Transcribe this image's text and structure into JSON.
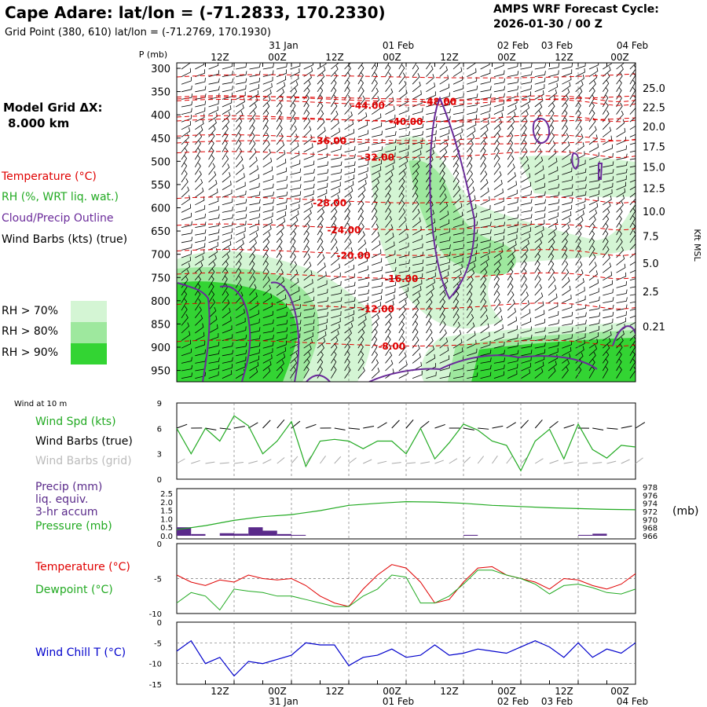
{
  "header": {
    "title": "Cape Adare:  lat/lon = (-71.2833, 170.2330)",
    "grid_point": "Grid Point (380, 610) lat/lon = (-71.2769, 170.1930)",
    "cycle_line1": "AMPS WRF Forecast Cycle:",
    "cycle_line2": "2026-01-30 / 00  Z",
    "model_grid_label": "Model Grid ΔX:",
    "model_grid_value": "8.000 km"
  },
  "colors": {
    "temperature": "#e00000",
    "rh": "#22aa22",
    "cloud": "#6a2a9a",
    "wind_chill": "#0000cc",
    "rh70": "#d4f5d4",
    "rh80": "#9ee89e",
    "rh90": "#33d433",
    "precip": "#5a2a8a"
  },
  "legend": {
    "temperature": "Temperature (°C)",
    "rh": "RH (%, WRT liq. wat.)",
    "cloud": "Cloud/Precip Outline",
    "wind": "Wind Barbs (kts) (true)",
    "rh70": "RH > 70%",
    "rh80": "RH > 80%",
    "rh90": "RH > 90%"
  },
  "time_axis": {
    "top_dates": [
      "31 Jan",
      "01 Feb",
      "02 Feb",
      "03 Feb",
      "04 Feb"
    ],
    "hour_labels": [
      "12Z",
      "00Z",
      "12Z",
      "00Z",
      "12Z",
      "00Z",
      "12Z",
      "00Z",
      "12Z",
      "00Z"
    ],
    "bottom_dates": [
      "31 Jan",
      "01 Feb",
      "02 Feb",
      "03 Feb",
      "04 Feb"
    ],
    "hours_total": 96
  },
  "chart_data": [
    {
      "type": "heatmap",
      "name": "vertical cross-section",
      "ylabel": "P (mb)",
      "y2label": "Kft MSL",
      "pressure_ticks": [
        300,
        350,
        400,
        450,
        500,
        550,
        600,
        650,
        700,
        750,
        800,
        850,
        900,
        950
      ],
      "height_ticks": [
        "25.0",
        "22.5",
        "20.0",
        "17.5",
        "15.0",
        "12.5",
        "10.0",
        "7.5",
        "5.0",
        "2.5",
        "0.21"
      ],
      "height_levels_p": [
        342,
        384,
        425,
        468,
        512,
        558,
        608,
        661,
        719,
        780,
        855,
        980
      ],
      "temperature_contours": [
        {
          "label": "-48.00",
          "t": 55,
          "p": 372
        },
        {
          "label": "-44.00",
          "t": 40,
          "p": 380
        },
        {
          "label": "-40.00",
          "t": 48,
          "p": 415
        },
        {
          "label": "-36.00",
          "t": 32,
          "p": 456
        },
        {
          "label": "-32.00",
          "t": 42,
          "p": 492
        },
        {
          "label": "-28.00",
          "t": 32,
          "p": 590
        },
        {
          "label": "-24.00",
          "t": 35,
          "p": 648
        },
        {
          "label": "-20.00",
          "t": 37,
          "p": 703
        },
        {
          "label": "-16.00",
          "t": 47,
          "p": 753
        },
        {
          "label": "-12.00",
          "t": 42,
          "p": 818
        },
        {
          "label": "-8.00",
          "t": 45,
          "p": 898
        }
      ]
    },
    {
      "type": "line",
      "name": "Wind at 10 m",
      "title": "Wind at 10 m",
      "series_labels": [
        "Wind Spd (kts)",
        "Wind Barbs (true)",
        "Wind Barbs (grid)"
      ],
      "y_ticks": [
        "9",
        "6",
        "3",
        "0"
      ],
      "ylim": [
        0,
        9
      ],
      "t": [
        0,
        3,
        6,
        9,
        12,
        15,
        18,
        21,
        24,
        27,
        30,
        33,
        36,
        39,
        42,
        45,
        48,
        51,
        54,
        57,
        60,
        63,
        66,
        69,
        72,
        75,
        78,
        81,
        84,
        87,
        90,
        93,
        96
      ],
      "values": [
        6.0,
        3.0,
        6.0,
        4.5,
        7.5,
        6.3,
        3.0,
        4.5,
        6.8,
        1.5,
        4.5,
        4.7,
        4.5,
        3.6,
        4.5,
        4.5,
        3.0,
        6.0,
        2.4,
        4.3,
        6.5,
        5.8,
        4.5,
        4.0,
        1.0,
        4.5,
        5.9,
        2.4,
        6.5,
        3.5,
        2.5,
        4.0,
        3.8
      ]
    },
    {
      "type": "line",
      "name": "Precip and Pressure",
      "series_labels": [
        "Precip (mm)",
        "liq. equiv.",
        "3-hr accum",
        "Pressure (mb)"
      ],
      "y_ticks": [
        "2.5",
        "2.0",
        "1.5",
        "1.0",
        "0.5",
        "0.0"
      ],
      "y2_ticks": [
        "978",
        "976",
        "974",
        "972",
        "970",
        "968",
        "966"
      ],
      "y2_unit": "(mb)",
      "precip_ylim": [
        0,
        2.5
      ],
      "pressure_ylim": [
        966,
        978
      ],
      "precip": [
        {
          "t": 0,
          "v": 0.5
        },
        {
          "t": 3,
          "v": 0.1
        },
        {
          "t": 9,
          "v": 0.15
        },
        {
          "t": 12,
          "v": 0.12
        },
        {
          "t": 15,
          "v": 0.5
        },
        {
          "t": 18,
          "v": 0.3
        },
        {
          "t": 21,
          "v": 0.1
        },
        {
          "t": 24,
          "v": 0.05
        },
        {
          "t": 60,
          "v": 0.05
        },
        {
          "t": 84,
          "v": 0.05
        },
        {
          "t": 87,
          "v": 0.12
        }
      ],
      "pressure_t": [
        0,
        6,
        12,
        18,
        24,
        30,
        36,
        42,
        48,
        54,
        60,
        66,
        72,
        78,
        84,
        90,
        96
      ],
      "pressure": [
        967.5,
        968.5,
        969.8,
        970.7,
        971.2,
        972.2,
        973.5,
        974.0,
        974.4,
        974.3,
        974.0,
        973.5,
        973.2,
        972.9,
        972.7,
        972.5,
        972.4
      ]
    },
    {
      "type": "line",
      "name": "Temperature and Dewpoint",
      "series_labels": [
        "Temperature (°C)",
        "Dewpoint (°C)"
      ],
      "y_ticks": [
        "0",
        "-5",
        "-10"
      ],
      "ylim": [
        -10,
        0
      ],
      "t": [
        0,
        3,
        6,
        9,
        12,
        15,
        18,
        21,
        24,
        27,
        30,
        33,
        36,
        39,
        42,
        45,
        48,
        51,
        54,
        57,
        60,
        63,
        66,
        69,
        72,
        75,
        78,
        81,
        84,
        87,
        90,
        93,
        96
      ],
      "temperature": [
        -4.5,
        -5.5,
        -6.0,
        -5.2,
        -5.5,
        -4.5,
        -5.0,
        -5.2,
        -5.0,
        -6.0,
        -7.5,
        -8.5,
        -9.0,
        -6.5,
        -4.5,
        -3.0,
        -3.5,
        -5.5,
        -8.5,
        -8.0,
        -5.5,
        -3.5,
        -3.3,
        -4.5,
        -5.0,
        -5.5,
        -6.5,
        -5.0,
        -5.2,
        -6.0,
        -6.5,
        -5.8,
        -4.3
      ],
      "dewpoint": [
        -8.5,
        -7.0,
        -7.5,
        -9.5,
        -6.5,
        -6.8,
        -7.0,
        -7.5,
        -7.5,
        -8.0,
        -8.5,
        -9.0,
        -9.0,
        -7.5,
        -6.5,
        -4.5,
        -4.8,
        -8.5,
        -8.5,
        -7.5,
        -5.8,
        -3.8,
        -3.8,
        -4.5,
        -5.0,
        -5.8,
        -7.2,
        -6.0,
        -5.8,
        -6.3,
        -7.0,
        -7.2,
        -6.5
      ]
    },
    {
      "type": "line",
      "name": "Wind Chill",
      "series_labels": [
        "Wind Chill T (°C)"
      ],
      "y_ticks": [
        "0",
        "-5",
        "-10",
        "-15"
      ],
      "ylim": [
        -15,
        0
      ],
      "t": [
        0,
        3,
        6,
        9,
        12,
        15,
        18,
        21,
        24,
        27,
        30,
        33,
        36,
        39,
        42,
        45,
        48,
        51,
        54,
        57,
        60,
        63,
        66,
        69,
        72,
        75,
        78,
        81,
        84,
        87,
        90,
        93,
        96
      ],
      "values": [
        -7.0,
        -4.5,
        -10.0,
        -8.5,
        -13.0,
        -9.5,
        -10.0,
        -9.0,
        -8.0,
        -5.0,
        -5.5,
        -5.5,
        -10.5,
        -8.5,
        -8.0,
        -6.5,
        -8.5,
        -8.0,
        -5.5,
        -8.0,
        -7.5,
        -6.5,
        -7.0,
        -7.5,
        -6.0,
        -4.5,
        -6.0,
        -8.5,
        -5.0,
        -8.5,
        -6.5,
        -7.5,
        -5.0
      ]
    }
  ]
}
